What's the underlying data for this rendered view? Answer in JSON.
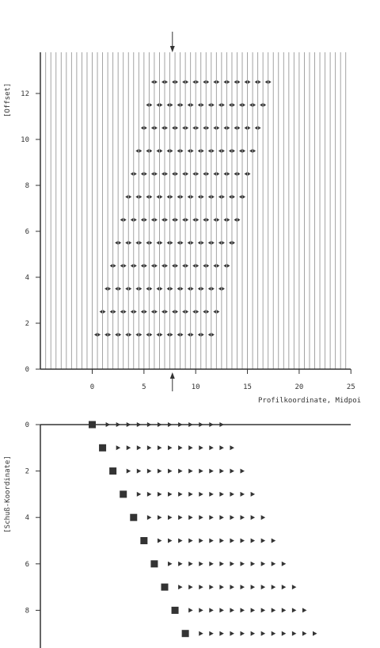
{
  "chart_data": [
    {
      "type": "scatter",
      "title": "",
      "xlabel": "Profilkoordinate, Midpoi",
      "ylabel": "[Offset]",
      "xlim": [
        -5,
        25
      ],
      "ylim": [
        0,
        14
      ],
      "x_ticks": [
        "0",
        "5",
        "10",
        "15",
        "20",
        "25"
      ],
      "y_ticks": [
        "0",
        "2",
        "4",
        "6",
        "8",
        "10",
        "12"
      ],
      "vertical_grid_spacing": 0.5,
      "marker": "double-headed arrow",
      "marker_color": "#333333",
      "grid_color": "#999999",
      "rows": [
        {
          "offset": 1.5,
          "x_start": 0.5,
          "x_step": 1.0,
          "count": 12
        },
        {
          "offset": 2.5,
          "x_start": 1.0,
          "x_step": 1.0,
          "count": 12
        },
        {
          "offset": 3.5,
          "x_start": 1.5,
          "x_step": 1.0,
          "count": 12
        },
        {
          "offset": 4.5,
          "x_start": 2.0,
          "x_step": 1.0,
          "count": 12
        },
        {
          "offset": 5.5,
          "x_start": 2.5,
          "x_step": 1.0,
          "count": 12
        },
        {
          "offset": 6.5,
          "x_start": 3.0,
          "x_step": 1.0,
          "count": 12
        },
        {
          "offset": 7.5,
          "x_start": 3.5,
          "x_step": 1.0,
          "count": 12
        },
        {
          "offset": 8.5,
          "x_start": 4.0,
          "x_step": 1.0,
          "count": 12
        },
        {
          "offset": 9.5,
          "x_start": 4.5,
          "x_step": 1.0,
          "count": 12
        },
        {
          "offset": 10.5,
          "x_start": 5.0,
          "x_step": 1.0,
          "count": 12
        },
        {
          "offset": 11.5,
          "x_start": 5.5,
          "x_step": 1.0,
          "count": 12
        },
        {
          "offset": 12.5,
          "x_start": 6.0,
          "x_step": 1.0,
          "count": 12
        }
      ],
      "marker_arrows": [
        "top",
        "bottom"
      ],
      "marker_arrow_x": 7.75
    },
    {
      "type": "scatter",
      "title": "",
      "xlabel": "",
      "ylabel": "[Schuß-Koordinate]",
      "xlim": [
        -5,
        25
      ],
      "ylim": [
        0,
        9.5
      ],
      "y_axis_inverted": true,
      "y_ticks": [
        "0",
        "2",
        "4",
        "6",
        "8"
      ],
      "shots": [
        {
          "shot": 0,
          "source_x": 0.0,
          "receiver_start": 1.5,
          "receiver_step": 1.0,
          "receiver_count": 12
        },
        {
          "shot": 1,
          "source_x": 1.0,
          "receiver_start": 2.5,
          "receiver_step": 1.0,
          "receiver_count": 12
        },
        {
          "shot": 2,
          "source_x": 2.0,
          "receiver_start": 3.5,
          "receiver_step": 1.0,
          "receiver_count": 12
        },
        {
          "shot": 3,
          "source_x": 3.0,
          "receiver_start": 4.5,
          "receiver_step": 1.0,
          "receiver_count": 12
        },
        {
          "shot": 4,
          "source_x": 4.0,
          "receiver_start": 5.5,
          "receiver_step": 1.0,
          "receiver_count": 12
        },
        {
          "shot": 5,
          "source_x": 5.0,
          "receiver_start": 6.5,
          "receiver_step": 1.0,
          "receiver_count": 12
        },
        {
          "shot": 6,
          "source_x": 6.0,
          "receiver_start": 7.5,
          "receiver_step": 1.0,
          "receiver_count": 12
        },
        {
          "shot": 7,
          "source_x": 7.0,
          "receiver_start": 8.5,
          "receiver_step": 1.0,
          "receiver_count": 12
        },
        {
          "shot": 8,
          "source_x": 8.0,
          "receiver_start": 9.5,
          "receiver_step": 1.0,
          "receiver_count": 12
        },
        {
          "shot": 9,
          "source_x": 9.0,
          "receiver_start": 10.5,
          "receiver_step": 1.0,
          "receiver_count": 12
        }
      ],
      "source_marker": "filled square",
      "receiver_marker": "right-pointing triangle",
      "marker_color": "#333333"
    }
  ]
}
